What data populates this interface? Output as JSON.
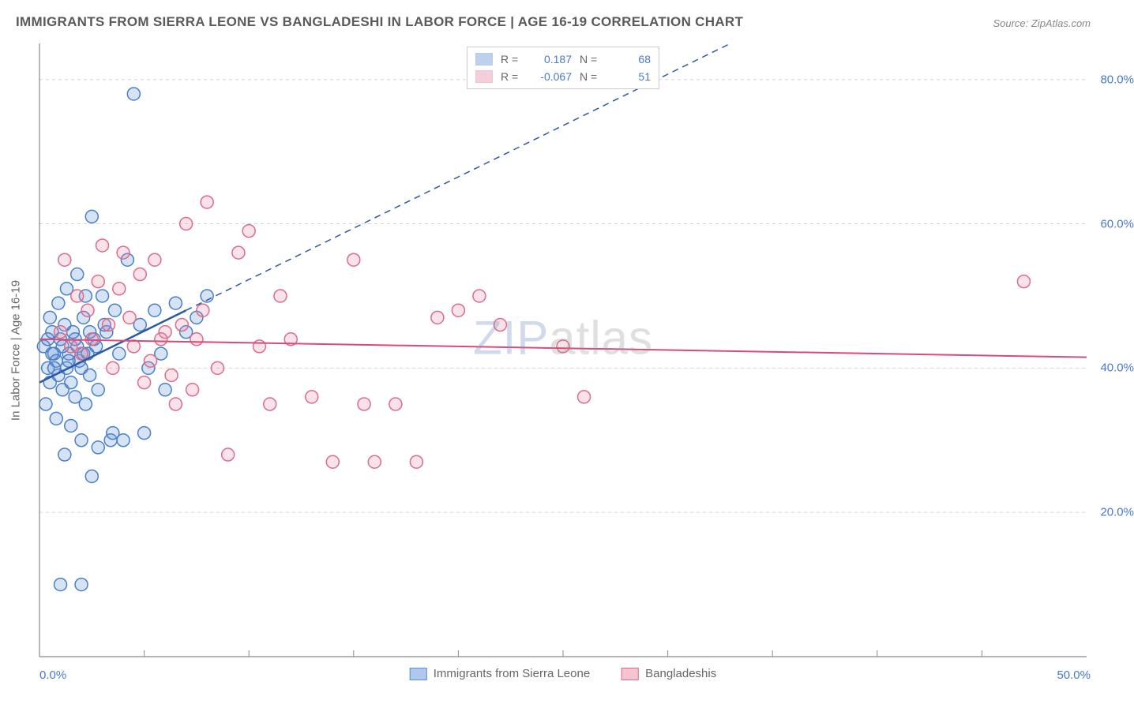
{
  "title": "IMMIGRANTS FROM SIERRA LEONE VS BANGLADESHI IN LABOR FORCE | AGE 16-19 CORRELATION CHART",
  "source": "Source: ZipAtlas.com",
  "ylabel": "In Labor Force | Age 16-19",
  "watermark_z": "ZIP",
  "watermark_rest": "atlas",
  "chart": {
    "type": "scatter",
    "background_color": "#ffffff",
    "grid_color": "#d5d5d5",
    "axis_color": "#888888",
    "xlim": [
      0,
      50
    ],
    "ylim": [
      0,
      85
    ],
    "xtick_labels": [
      "0.0%",
      "50.0%"
    ],
    "yticks": [
      20,
      40,
      60,
      80
    ],
    "ytick_labels": [
      "20.0%",
      "40.0%",
      "60.0%",
      "80.0%"
    ],
    "xtick_minor": [
      5,
      10,
      15,
      20,
      25,
      30,
      35,
      40,
      45
    ],
    "marker_radius": 8,
    "marker_stroke_width": 1.5,
    "marker_fill_opacity": 0.25,
    "series": [
      {
        "name": "Immigrants from Sierra Leone",
        "color": "#5b8fd6",
        "stroke": "#4a7fc8",
        "R": "0.187",
        "N": "68",
        "trend": {
          "x1": 0,
          "y1": 38,
          "x2_solid": 7,
          "y2_solid": 48,
          "x2_dash": 33,
          "y2_dash": 85,
          "color": "#2c5aa0",
          "width": 2.5
        },
        "points": [
          [
            0.2,
            43
          ],
          [
            0.4,
            40
          ],
          [
            0.5,
            38
          ],
          [
            0.6,
            45
          ],
          [
            0.7,
            42
          ],
          [
            0.8,
            41
          ],
          [
            0.9,
            39
          ],
          [
            1.0,
            44
          ],
          [
            1.1,
            37
          ],
          [
            1.2,
            46
          ],
          [
            1.3,
            40
          ],
          [
            1.4,
            42
          ],
          [
            1.5,
            38
          ],
          [
            1.6,
            45
          ],
          [
            1.7,
            36
          ],
          [
            1.8,
            43
          ],
          [
            1.9,
            41
          ],
          [
            2.0,
            40
          ],
          [
            2.1,
            47
          ],
          [
            2.2,
            35
          ],
          [
            2.3,
            42
          ],
          [
            2.4,
            39
          ],
          [
            2.5,
            61
          ],
          [
            2.6,
            44
          ],
          [
            2.8,
            37
          ],
          [
            3.0,
            50
          ],
          [
            3.2,
            45
          ],
          [
            3.4,
            30
          ],
          [
            3.6,
            48
          ],
          [
            3.8,
            42
          ],
          [
            4.0,
            30
          ],
          [
            4.2,
            55
          ],
          [
            4.5,
            78
          ],
          [
            4.8,
            46
          ],
          [
            5.0,
            31
          ],
          [
            5.2,
            40
          ],
          [
            5.5,
            48
          ],
          [
            5.8,
            42
          ],
          [
            6.0,
            37
          ],
          [
            6.5,
            49
          ],
          [
            7.0,
            45
          ],
          [
            7.5,
            47
          ],
          [
            8.0,
            50
          ],
          [
            0.3,
            35
          ],
          [
            0.8,
            33
          ],
          [
            1.5,
            32
          ],
          [
            2.0,
            30
          ],
          [
            2.5,
            25
          ],
          [
            1.0,
            10
          ],
          [
            2.0,
            10
          ],
          [
            1.2,
            28
          ],
          [
            2.8,
            29
          ],
          [
            3.5,
            31
          ],
          [
            0.5,
            47
          ],
          [
            0.9,
            49
          ],
          [
            1.3,
            51
          ],
          [
            1.8,
            53
          ],
          [
            2.2,
            50
          ],
          [
            0.4,
            44
          ],
          [
            0.6,
            42
          ],
          [
            0.7,
            40
          ],
          [
            1.1,
            43
          ],
          [
            1.4,
            41
          ],
          [
            1.7,
            44
          ],
          [
            2.1,
            42
          ],
          [
            2.4,
            45
          ],
          [
            2.7,
            43
          ],
          [
            3.1,
            46
          ]
        ]
      },
      {
        "name": "Bangladeshis",
        "color": "#e68aa5",
        "stroke": "#dc6b8d",
        "R": "-0.067",
        "N": "51",
        "trend": {
          "x1": 0,
          "y1": 44,
          "x2_solid": 50,
          "y2_solid": 41.5,
          "color": "#d94a78",
          "width": 2
        },
        "points": [
          [
            1.0,
            45
          ],
          [
            1.5,
            43
          ],
          [
            2.0,
            42
          ],
          [
            2.5,
            44
          ],
          [
            3.0,
            57
          ],
          [
            3.5,
            40
          ],
          [
            4.0,
            56
          ],
          [
            4.5,
            43
          ],
          [
            5.0,
            38
          ],
          [
            5.5,
            55
          ],
          [
            6.0,
            45
          ],
          [
            6.5,
            35
          ],
          [
            7.0,
            60
          ],
          [
            7.5,
            44
          ],
          [
            8.0,
            63
          ],
          [
            8.5,
            40
          ],
          [
            9.0,
            28
          ],
          [
            9.5,
            56
          ],
          [
            10.0,
            59
          ],
          [
            10.5,
            43
          ],
          [
            11.0,
            35
          ],
          [
            11.5,
            50
          ],
          [
            12.0,
            44
          ],
          [
            13.0,
            36
          ],
          [
            14.0,
            27
          ],
          [
            15.0,
            55
          ],
          [
            15.5,
            35
          ],
          [
            16.0,
            27
          ],
          [
            17.0,
            35
          ],
          [
            18.0,
            27
          ],
          [
            19.0,
            47
          ],
          [
            20.0,
            48
          ],
          [
            21.0,
            50
          ],
          [
            22.0,
            46
          ],
          [
            25.0,
            43
          ],
          [
            26.0,
            36
          ],
          [
            47.0,
            52
          ],
          [
            1.2,
            55
          ],
          [
            1.8,
            50
          ],
          [
            2.3,
            48
          ],
          [
            2.8,
            52
          ],
          [
            3.3,
            46
          ],
          [
            3.8,
            51
          ],
          [
            4.3,
            47
          ],
          [
            4.8,
            53
          ],
          [
            5.3,
            41
          ],
          [
            5.8,
            44
          ],
          [
            6.3,
            39
          ],
          [
            6.8,
            46
          ],
          [
            7.3,
            37
          ],
          [
            7.8,
            48
          ]
        ]
      }
    ]
  },
  "legend_bottom": [
    {
      "label": "Immigrants from Sierra Leone",
      "fill": "#aec9eb",
      "stroke": "#5b8fd6"
    },
    {
      "label": "Bangladeshis",
      "fill": "#f5c4d3",
      "stroke": "#dc6b8d"
    }
  ],
  "legend_top_labels": {
    "R": "R =",
    "N": "N ="
  }
}
